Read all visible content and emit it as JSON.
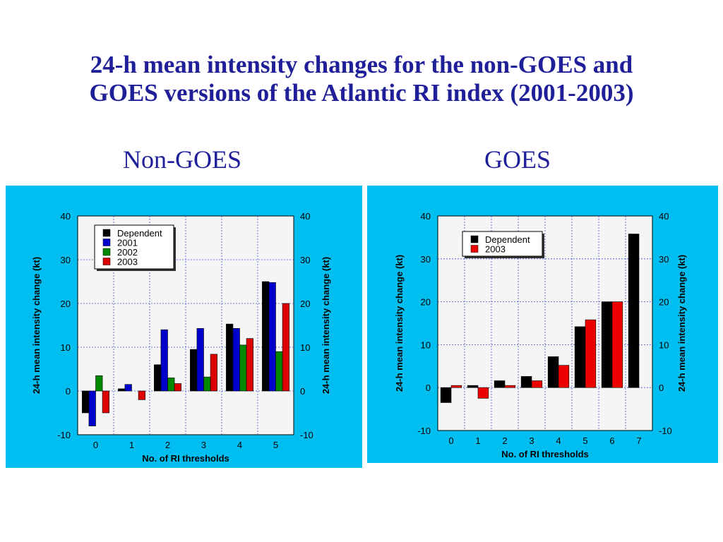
{
  "title_line1": "24-h mean intensity changes for the non-GOES and",
  "title_line2": "GOES versions of the Atlantic RI index (2001-2003)",
  "left_subtitle": "Non-GOES",
  "right_subtitle": "GOES",
  "chart_data": [
    {
      "type": "bar",
      "categories": [
        "0",
        "1",
        "2",
        "3",
        "4",
        "5"
      ],
      "series": [
        {
          "name": "Dependent",
          "color": "#000000",
          "values": [
            -5,
            0.5,
            6,
            9.5,
            15.3,
            25
          ]
        },
        {
          "name": "2001",
          "color": "#0000cc",
          "values": [
            -8,
            1.5,
            14,
            14.3,
            14.3,
            24.8
          ]
        },
        {
          "name": "2002",
          "color": "#008800",
          "values": [
            3.5,
            null,
            3,
            3.2,
            10.5,
            9
          ]
        },
        {
          "name": "2003",
          "color": "#dd0000",
          "values": [
            -5,
            -2,
            1.7,
            8.4,
            12,
            20
          ]
        }
      ],
      "xlabel": "No. of RI thresholds",
      "ylabel": "24-h mean intensity change (kt)",
      "ylabel_right": "24-h mean intensity change (kt)",
      "ylim": [
        -10,
        40
      ],
      "yticks": [
        "-10",
        "0",
        "10",
        "20",
        "30",
        "40"
      ],
      "grid": true,
      "legend": "top-left"
    },
    {
      "type": "bar",
      "categories": [
        "0",
        "1",
        "2",
        "3",
        "4",
        "5",
        "6",
        "7"
      ],
      "series": [
        {
          "name": "Dependent",
          "color": "#000000",
          "values": [
            -3.5,
            0.5,
            1.6,
            2.6,
            7.2,
            14.2,
            20,
            35.8
          ]
        },
        {
          "name": "2003",
          "color": "#ee0000",
          "values": [
            0.5,
            -2.5,
            0.5,
            1.6,
            5.2,
            15.8,
            20,
            null
          ]
        }
      ],
      "xlabel": "No. of RI thresholds",
      "ylabel": "24-h mean intensity change (kt)",
      "ylabel_right": "24-h mean intensity change (kt)",
      "ylim": [
        -10,
        40
      ],
      "yticks": [
        "-10",
        "0",
        "10",
        "20",
        "30",
        "40"
      ],
      "grid": true,
      "legend": "top-left"
    }
  ]
}
